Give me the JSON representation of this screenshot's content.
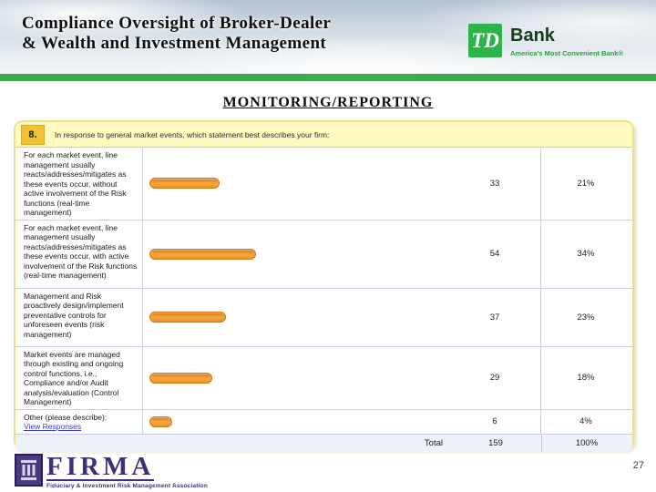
{
  "header": {
    "title_line1": "Compliance Oversight of Broker-Dealer",
    "title_line2": "& Wealth and Investment Management",
    "logo": {
      "square_text": "TD",
      "bank_text": "Bank",
      "tagline": "America's Most Convenient Bank®"
    }
  },
  "section_heading": "MONITORING/REPORTING",
  "survey": {
    "question_number": "8.",
    "question": "In response to general market events, which statement best describes your firm:",
    "rows": [
      {
        "label": "For each market event, line management usually reacts/addresses/mitigates as these events occur, without active involvement of the Risk functions (real-time management)",
        "link": null,
        "value": 33,
        "count": "33",
        "percent": "21%"
      },
      {
        "label": "For each market event, line management usually reacts/addresses/mitigates as these events occur, with active involvement of the Risk functions (real-time management)",
        "link": null,
        "value": 54,
        "count": "54",
        "percent": "34%"
      },
      {
        "label": "Management and Risk proactively design/implement preventative controls for unforeseen events (risk management)",
        "link": null,
        "value": 37,
        "count": "37",
        "percent": "23%"
      },
      {
        "label": "Market events are managed through existing and ongoing control functions, i.e., Compliance and/or Audit analysis/evaluation (Control Management)",
        "link": null,
        "value": 29,
        "count": "29",
        "percent": "18%"
      },
      {
        "label": "Other (please describe):",
        "link": "View Responses",
        "value": 6,
        "count": "6",
        "percent": "4%"
      }
    ],
    "total_label": "Total",
    "total_count": "159",
    "total_percent": "100%"
  },
  "chart_data": {
    "type": "bar",
    "orientation": "horizontal",
    "title": "MONITORING/REPORTING",
    "question": "8. In response to general market events, which statement best describes your firm:",
    "categories": [
      "For each market event, line management usually reacts/addresses/mitigates as these events occur, without active involvement of the Risk functions (real-time management)",
      "For each market event, line management usually reacts/addresses/mitigates as these events occur, with active involvement of the Risk functions (real-time management)",
      "Management and Risk proactively design/implement preventative controls for unforeseen events (risk management)",
      "Market events are managed through existing and ongoing control functions, i.e., Compliance and/or Audit analysis/evaluation (Control Management)",
      "Other (please describe): View Responses"
    ],
    "values": [
      33,
      54,
      37,
      29,
      6
    ],
    "percents": [
      "21%",
      "34%",
      "23%",
      "18%",
      "4%"
    ],
    "total": {
      "label": "Total",
      "count": 159,
      "percent": "100%"
    },
    "bar_color": "#ee9122",
    "legend": "none",
    "grid": "row dividers only"
  },
  "footer_logo": {
    "name": "FIRMA",
    "tagline": "Fiduciary & Investment Risk Management Association"
  },
  "page_number": "27",
  "colors": {
    "green_bar": "#3bac4e",
    "td_green": "#2eb24a",
    "td_bank_text": "#143d1c",
    "td_tagline_green": "#2f9e3f",
    "card_border_yellow": "#ece08a",
    "question_bg": "#fff9bf",
    "question_number_bg": "#f2c232",
    "bar_orange": "#ee9122",
    "gridline": "#c9cfe3",
    "total_row_bg": "#edf1fa",
    "link_blue": "#3c3cc8",
    "firma_purple": "#3f2f7a"
  }
}
